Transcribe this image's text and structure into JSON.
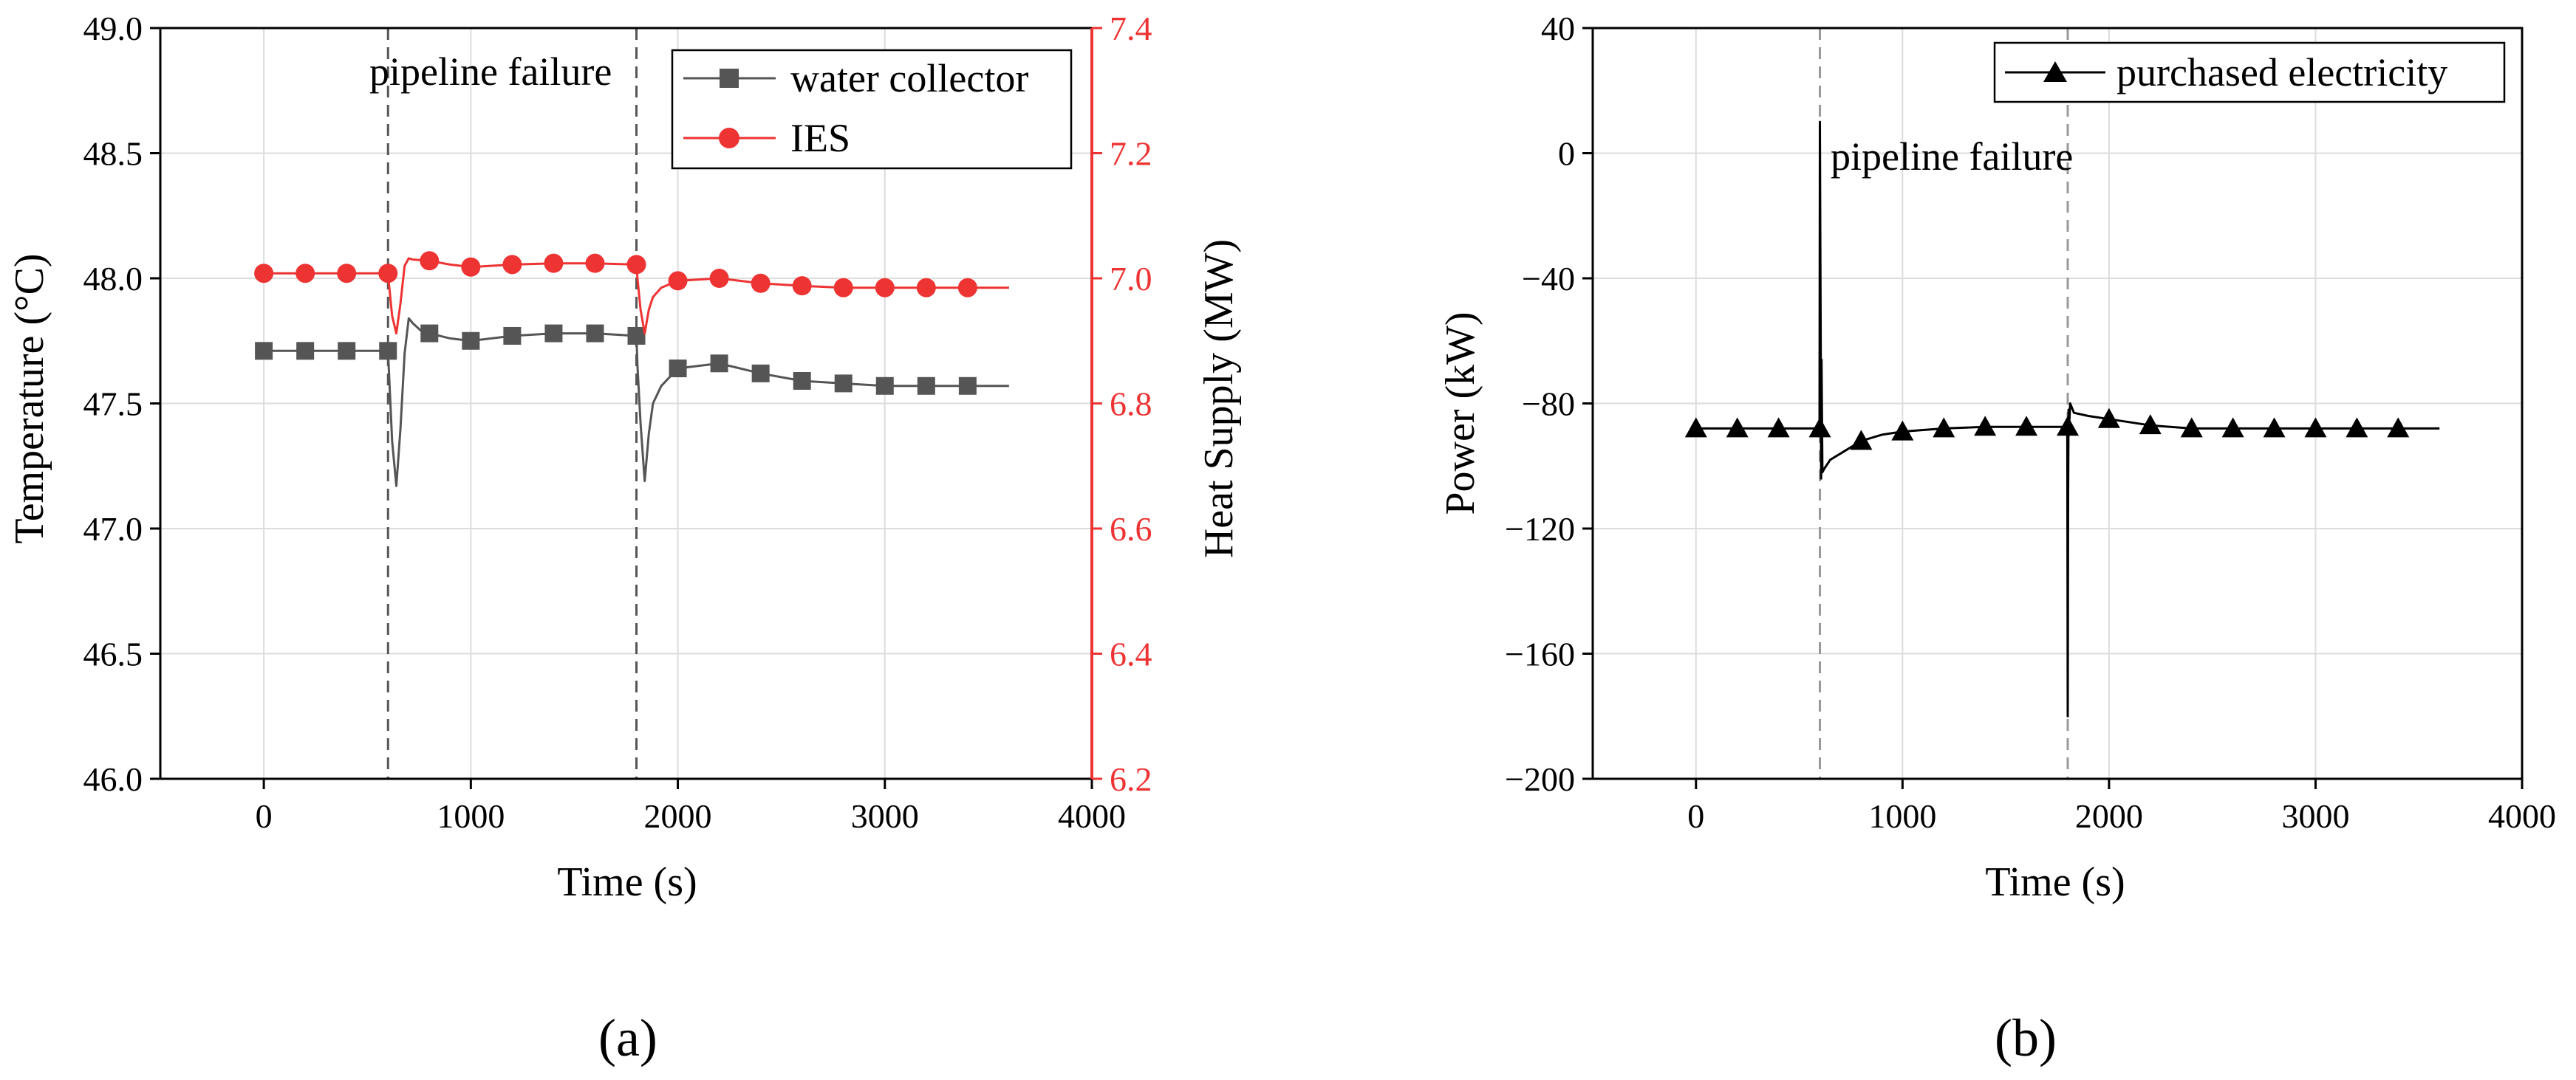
{
  "chart_data": [
    {
      "panel_label": "(a)",
      "type": "line",
      "xlabel": "Time (s)",
      "ylabel": "Temperature (°C)",
      "y2label": "Heat Supply (MW)",
      "xlim": [
        -500,
        4000
      ],
      "ylim": [
        46.0,
        49.0
      ],
      "y2lim": [
        6.2,
        7.4
      ],
      "xticks": [
        "0",
        "1000",
        "2000",
        "3000",
        "4000"
      ],
      "yticks": [
        "46.0",
        "46.5",
        "47.0",
        "47.5",
        "48.0",
        "48.5",
        "49.0"
      ],
      "y2ticks": [
        "6.2",
        "6.4",
        "6.6",
        "6.8",
        "7.0",
        "7.2",
        "7.4"
      ],
      "annotation": "pipeline failure",
      "failure_times": [
        600,
        1800
      ],
      "colors": {
        "water_collector": "#555555",
        "ies": "#ee3333"
      },
      "series": [
        {
          "name": "water collector",
          "axis": "left",
          "marker": "square",
          "marker_x": [
            0,
            200,
            400,
            600,
            800,
            1000,
            1200,
            1400,
            1600,
            1800,
            2000,
            2200,
            2400,
            2600,
            2800,
            3000,
            3200,
            3400
          ],
          "marker_y": [
            47.71,
            47.71,
            47.71,
            47.71,
            47.78,
            47.75,
            47.77,
            47.78,
            47.78,
            47.77,
            47.64,
            47.66,
            47.62,
            47.59,
            47.58,
            47.57,
            47.57,
            47.57
          ],
          "curve_x": [
            0,
            400,
            600,
            605,
            620,
            640,
            660,
            680,
            700,
            720,
            760,
            800,
            900,
            1000,
            1200,
            1400,
            1600,
            1800,
            1805,
            1820,
            1840,
            1860,
            1880,
            1920,
            2000,
            2200,
            2300,
            2400,
            2600,
            2800,
            3000,
            3200,
            3600
          ],
          "curve_y": [
            47.71,
            47.71,
            47.71,
            47.62,
            47.35,
            47.17,
            47.4,
            47.7,
            47.84,
            47.82,
            47.79,
            47.78,
            47.76,
            47.75,
            47.77,
            47.78,
            47.78,
            47.77,
            47.65,
            47.42,
            47.19,
            47.38,
            47.5,
            47.57,
            47.64,
            47.66,
            47.64,
            47.62,
            47.59,
            47.58,
            47.57,
            47.57,
            47.57
          ]
        },
        {
          "name": "IES",
          "axis": "right",
          "marker": "circle",
          "marker_x": [
            0,
            200,
            400,
            600,
            800,
            1000,
            1200,
            1400,
            1600,
            1800,
            2000,
            2200,
            2400,
            2600,
            2800,
            3000,
            3200,
            3400
          ],
          "marker_y": [
            7.008,
            7.008,
            7.008,
            7.008,
            7.028,
            7.018,
            7.022,
            7.024,
            7.024,
            7.022,
            6.996,
            7.0,
            6.992,
            6.988,
            6.985,
            6.985,
            6.985,
            6.985
          ],
          "curve_x": [
            0,
            400,
            600,
            605,
            620,
            640,
            660,
            680,
            700,
            720,
            760,
            800,
            900,
            1000,
            1200,
            1400,
            1600,
            1800,
            1805,
            1820,
            1840,
            1860,
            1880,
            1920,
            2000,
            2200,
            2300,
            2400,
            2600,
            2800,
            3000,
            3200,
            3600
          ],
          "curve_y": [
            7.008,
            7.008,
            7.008,
            6.99,
            6.94,
            6.912,
            6.96,
            7.02,
            7.032,
            7.03,
            7.029,
            7.028,
            7.022,
            7.018,
            7.022,
            7.024,
            7.024,
            7.022,
            7.0,
            6.95,
            6.912,
            6.95,
            6.97,
            6.985,
            6.996,
            7.0,
            6.996,
            6.992,
            6.988,
            6.985,
            6.985,
            6.985,
            6.985
          ]
        }
      ]
    },
    {
      "panel_label": "(b)",
      "type": "line",
      "xlabel": "Time (s)",
      "ylabel": "Power (kW)",
      "xlim": [
        -500,
        4000
      ],
      "ylim": [
        -200,
        40
      ],
      "xticks": [
        "0",
        "1000",
        "2000",
        "3000",
        "4000"
      ],
      "yticks": [
        "-200",
        "-160",
        "-120",
        "-80",
        "-40",
        "0",
        "40"
      ],
      "annotation": "pipeline failure",
      "failure_times": [
        600,
        1800
      ],
      "colors": {
        "purchased_electricity": "#000000"
      },
      "series": [
        {
          "name": "purchased electricity",
          "marker": "triangle",
          "marker_x": [
            0,
            200,
            400,
            600,
            800,
            1000,
            1200,
            1400,
            1600,
            1800,
            2000,
            2200,
            2400,
            2600,
            2800,
            3000,
            3200,
            3400
          ],
          "marker_y": [
            -88,
            -88,
            -88,
            -88,
            -92,
            -89,
            -88,
            -87.5,
            -87.5,
            -87.5,
            -85,
            -87,
            -88,
            -88,
            -88,
            -88,
            -88,
            -88
          ],
          "curve_x": [
            0,
            598,
            600,
            602,
            604,
            606,
            608,
            612,
            620,
            650,
            700,
            800,
            900,
            1000,
            1200,
            1400,
            1600,
            1796,
            1798,
            1800,
            1802,
            1804,
            1806,
            1812,
            1830,
            1900,
            2000,
            2200,
            2400,
            2800,
            3200,
            3600
          ],
          "curve_y": [
            -88,
            -88,
            10,
            -30,
            -60,
            -104,
            -66,
            -102,
            -101,
            -98,
            -96,
            -92,
            -90,
            -89,
            -88,
            -87.5,
            -87.5,
            -87.5,
            -90,
            -180,
            -110,
            -82,
            -88,
            -80,
            -83,
            -84,
            -85,
            -87,
            -88,
            -88,
            -88,
            -88
          ]
        }
      ]
    }
  ]
}
